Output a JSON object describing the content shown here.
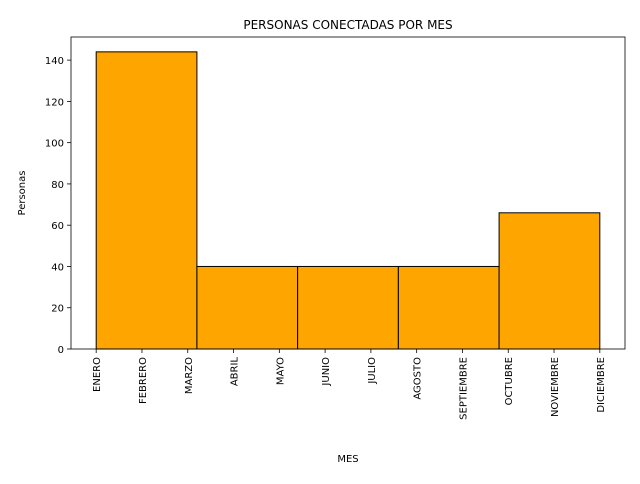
{
  "chart_data": {
    "type": "bar",
    "title": "PERSONAS CONECTADAS POR MES",
    "xlabel": "MES",
    "ylabel": "Personas",
    "categories": [
      "ENERO",
      "FEBRERO",
      "MARZO",
      "ABRIL",
      "MAYO",
      "JUNIO",
      "JULIO",
      "AGOSTO",
      "SEPTIEMBRE",
      "OCTUBRE",
      "NOVIEMBRE",
      "DICIEMBRE"
    ],
    "bins": [
      {
        "start": 0,
        "end": 2.2,
        "value": 144
      },
      {
        "start": 2.2,
        "end": 4.4,
        "value": 40
      },
      {
        "start": 4.4,
        "end": 6.6,
        "value": 40
      },
      {
        "start": 6.6,
        "end": 8.8,
        "value": 40
      },
      {
        "start": 8.8,
        "end": 11,
        "value": 66
      }
    ],
    "yticks": [
      0,
      20,
      40,
      60,
      80,
      100,
      120,
      140
    ],
    "ylim": [
      0,
      151.2
    ],
    "xlim": [
      -0.55,
      11.55
    ],
    "bar_color": "#ffa500",
    "edge_color": "#000000",
    "grid": false,
    "legend": "none"
  }
}
